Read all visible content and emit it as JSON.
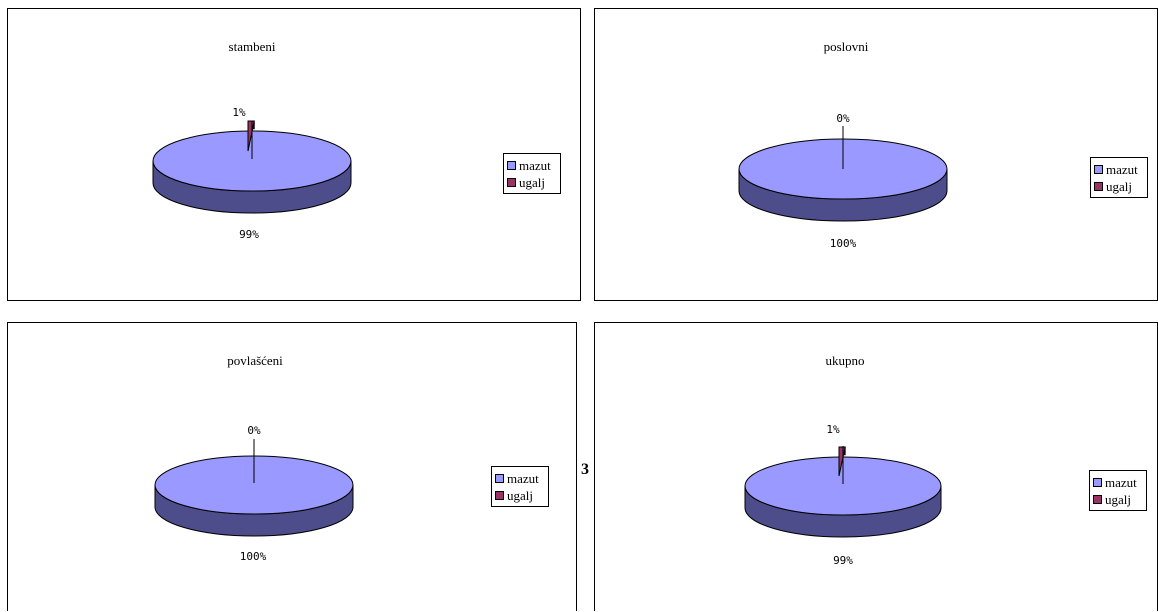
{
  "colors": {
    "mazut": "#9999FF",
    "mazut_side": "#4D4D8C",
    "ugalj": "#993366",
    "ugalj_side": "#5C1F3D"
  },
  "page_number": "3",
  "chart_data": [
    {
      "type": "pie",
      "title": "stambeni",
      "categories": [
        "mazut",
        "ugalj"
      ],
      "values": [
        99,
        1
      ],
      "data_labels": [
        "99%",
        "1%"
      ],
      "legend": [
        "mazut",
        "ugalj"
      ],
      "legend_position": "right"
    },
    {
      "type": "pie",
      "title": "poslovni",
      "categories": [
        "mazut",
        "ugalj"
      ],
      "values": [
        100,
        0
      ],
      "data_labels": [
        "100%",
        "0%"
      ],
      "legend": [
        "mazut",
        "ugalj"
      ],
      "legend_position": "right"
    },
    {
      "type": "pie",
      "title": "povlašćeni",
      "categories": [
        "mazut",
        "ugalj"
      ],
      "values": [
        100,
        0
      ],
      "data_labels": [
        "100%",
        "0%"
      ],
      "legend": [
        "mazut",
        "ugalj"
      ],
      "legend_position": "right"
    },
    {
      "type": "pie",
      "title": "ukupno",
      "categories": [
        "mazut",
        "ugalj"
      ],
      "values": [
        99,
        1
      ],
      "data_labels": [
        "99%",
        "1%"
      ],
      "legend": [
        "mazut",
        "ugalj"
      ],
      "legend_position": "right"
    }
  ]
}
